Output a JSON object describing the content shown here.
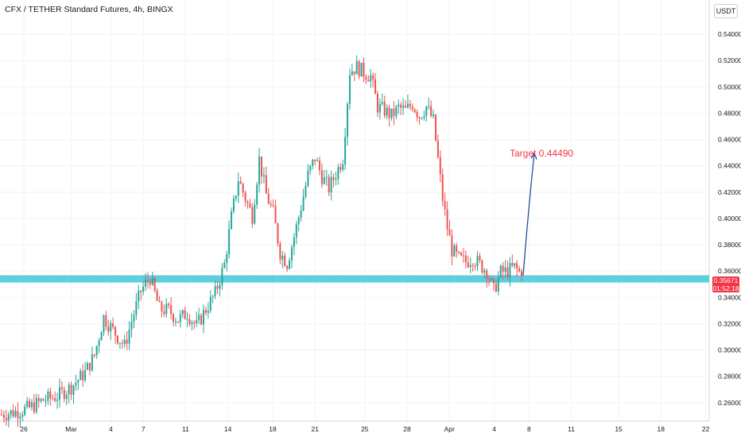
{
  "header": {
    "title": "CFX / TETHER Standard Futures, 4h, BINGX",
    "currency": "USDT"
  },
  "price_tag": {
    "price": "0.35671",
    "countdown": "01:52:18"
  },
  "annotation": {
    "target_label": "Target 0.44490",
    "target_value": 0.4449
  },
  "support_zone": {
    "low": 0.3513,
    "high": 0.3567,
    "color": "#5dd0e0"
  },
  "colors": {
    "up": "#26a69a",
    "down": "#ef5350",
    "arrow": "#1c3f8f",
    "target": "#f23645"
  },
  "chart_data": {
    "type": "candlestick",
    "title": "CFX / TETHER Standard Futures, 4h, BINGX",
    "ylabel": "USDT",
    "ylim": [
      0.246,
      0.566
    ],
    "y_ticks": [
      "0.26000",
      "0.28000",
      "0.30000",
      "0.32000",
      "0.34000",
      "0.36000",
      "0.38000",
      "0.40000",
      "0.42000",
      "0.44000",
      "0.46000",
      "0.48000",
      "0.50000",
      "0.52000",
      "0.54000"
    ],
    "x_ticks": [
      "26",
      "Mar",
      "4",
      "7",
      "11",
      "14",
      "18",
      "21",
      "25",
      "28",
      "Apr",
      "4",
      "8",
      "11",
      "15",
      "18",
      "22"
    ],
    "last_price": 0.35671,
    "path": [
      [
        0,
        0.251
      ],
      [
        6,
        0.253
      ],
      [
        12,
        0.256
      ],
      [
        18,
        0.262
      ],
      [
        24,
        0.265
      ],
      [
        30,
        0.272
      ],
      [
        36,
        0.283
      ],
      [
        40,
        0.296
      ],
      [
        44,
        0.325
      ],
      [
        48,
        0.315
      ],
      [
        53,
        0.303
      ],
      [
        56,
        0.322
      ],
      [
        60,
        0.345
      ],
      [
        64,
        0.355
      ],
      [
        68,
        0.331
      ],
      [
        72,
        0.33
      ],
      [
        76,
        0.323
      ],
      [
        80,
        0.328
      ],
      [
        84,
        0.318
      ],
      [
        88,
        0.331
      ],
      [
        92,
        0.343
      ],
      [
        96,
        0.365
      ],
      [
        99,
        0.401
      ],
      [
        102,
        0.43
      ],
      [
        105,
        0.415
      ],
      [
        108,
        0.402
      ],
      [
        111,
        0.445
      ],
      [
        114,
        0.418
      ],
      [
        117,
        0.404
      ],
      [
        120,
        0.374
      ],
      [
        123,
        0.366
      ],
      [
        126,
        0.386
      ],
      [
        128,
        0.401
      ],
      [
        132,
        0.433
      ],
      [
        135,
        0.446
      ],
      [
        138,
        0.432
      ],
      [
        141,
        0.423
      ],
      [
        144,
        0.434
      ],
      [
        147,
        0.446
      ],
      [
        150,
        0.512
      ],
      [
        153,
        0.515
      ],
      [
        156,
        0.511
      ],
      [
        159,
        0.508
      ],
      [
        162,
        0.485
      ],
      [
        165,
        0.482
      ],
      [
        168,
        0.478
      ],
      [
        171,
        0.484
      ],
      [
        174,
        0.482
      ],
      [
        177,
        0.487
      ],
      [
        180,
        0.478
      ],
      [
        183,
        0.485
      ],
      [
        186,
        0.474
      ],
      [
        188,
        0.445
      ],
      [
        190,
        0.415
      ],
      [
        192,
        0.393
      ],
      [
        194,
        0.376
      ],
      [
        197,
        0.369
      ],
      [
        200,
        0.367
      ],
      [
        203,
        0.37
      ],
      [
        206,
        0.365
      ],
      [
        209,
        0.36
      ],
      [
        212,
        0.345
      ],
      [
        215,
        0.359
      ],
      [
        218,
        0.36
      ],
      [
        221,
        0.363
      ],
      [
        224,
        0.357
      ]
    ],
    "period_range": [
      0,
      224
    ],
    "x_tick_positions": [
      0,
      19,
      35,
      48,
      65,
      82,
      100,
      117,
      137,
      154,
      171,
      189,
      203,
      220,
      239,
      256,
      274
    ]
  }
}
